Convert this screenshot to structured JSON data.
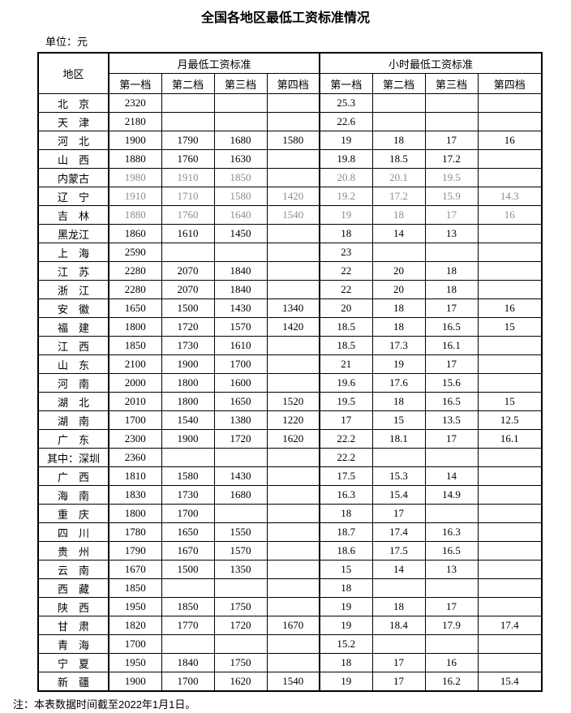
{
  "title": "全国各地区最低工资标准情况",
  "unit_label": "单位：元",
  "note": "注：本表数据时间截至2022年1月1日。",
  "colors": {
    "border": "#000000",
    "text": "#000000",
    "muted_text": "#8c8c8c",
    "background": "#ffffff"
  },
  "table": {
    "region_header": "地区",
    "group_headers": [
      "月最低工资标准",
      "小时最低工资标准"
    ],
    "tier_headers": [
      "第一档",
      "第二档",
      "第三档",
      "第四档"
    ],
    "rows": [
      {
        "region": "北　京",
        "monthly": [
          "2320",
          "",
          "",
          ""
        ],
        "hourly": [
          "25.3",
          "",
          "",
          ""
        ],
        "muted": false
      },
      {
        "region": "天　津",
        "monthly": [
          "2180",
          "",
          "",
          ""
        ],
        "hourly": [
          "22.6",
          "",
          "",
          ""
        ],
        "muted": false
      },
      {
        "region": "河　北",
        "monthly": [
          "1900",
          "1790",
          "1680",
          "1580"
        ],
        "hourly": [
          "19",
          "18",
          "17",
          "16"
        ],
        "muted": false
      },
      {
        "region": "山　西",
        "monthly": [
          "1880",
          "1760",
          "1630",
          ""
        ],
        "hourly": [
          "19.8",
          "18.5",
          "17.2",
          ""
        ],
        "muted": false
      },
      {
        "region": "内蒙古",
        "monthly": [
          "1980",
          "1910",
          "1850",
          ""
        ],
        "hourly": [
          "20.8",
          "20.1",
          "19.5",
          ""
        ],
        "muted": true
      },
      {
        "region": "辽　宁",
        "monthly": [
          "1910",
          "1710",
          "1580",
          "1420"
        ],
        "hourly": [
          "19.2",
          "17.2",
          "15.9",
          "14.3"
        ],
        "muted": true
      },
      {
        "region": "吉　林",
        "monthly": [
          "1880",
          "1760",
          "1640",
          "1540"
        ],
        "hourly": [
          "19",
          "18",
          "17",
          "16"
        ],
        "muted": true
      },
      {
        "region": "黑龙江",
        "monthly": [
          "1860",
          "1610",
          "1450",
          ""
        ],
        "hourly": [
          "18",
          "14",
          "13",
          ""
        ],
        "muted": false
      },
      {
        "region": "上　海",
        "monthly": [
          "2590",
          "",
          "",
          ""
        ],
        "hourly": [
          "23",
          "",
          "",
          ""
        ],
        "muted": false
      },
      {
        "region": "江　苏",
        "monthly": [
          "2280",
          "2070",
          "1840",
          ""
        ],
        "hourly": [
          "22",
          "20",
          "18",
          ""
        ],
        "muted": false
      },
      {
        "region": "浙　江",
        "monthly": [
          "2280",
          "2070",
          "1840",
          ""
        ],
        "hourly": [
          "22",
          "20",
          "18",
          ""
        ],
        "muted": false
      },
      {
        "region": "安　徽",
        "monthly": [
          "1650",
          "1500",
          "1430",
          "1340"
        ],
        "hourly": [
          "20",
          "18",
          "17",
          "16"
        ],
        "muted": false
      },
      {
        "region": "福　建",
        "monthly": [
          "1800",
          "1720",
          "1570",
          "1420"
        ],
        "hourly": [
          "18.5",
          "18",
          "16.5",
          "15"
        ],
        "muted": false
      },
      {
        "region": "江　西",
        "monthly": [
          "1850",
          "1730",
          "1610",
          ""
        ],
        "hourly": [
          "18.5",
          "17.3",
          "16.1",
          ""
        ],
        "muted": false
      },
      {
        "region": "山　东",
        "monthly": [
          "2100",
          "1900",
          "1700",
          ""
        ],
        "hourly": [
          "21",
          "19",
          "17",
          ""
        ],
        "muted": false
      },
      {
        "region": "河　南",
        "monthly": [
          "2000",
          "1800",
          "1600",
          ""
        ],
        "hourly": [
          "19.6",
          "17.6",
          "15.6",
          ""
        ],
        "muted": false
      },
      {
        "region": "湖　北",
        "monthly": [
          "2010",
          "1800",
          "1650",
          "1520"
        ],
        "hourly": [
          "19.5",
          "18",
          "16.5",
          "15"
        ],
        "muted": false
      },
      {
        "region": "湖　南",
        "monthly": [
          "1700",
          "1540",
          "1380",
          "1220"
        ],
        "hourly": [
          "17",
          "15",
          "13.5",
          "12.5"
        ],
        "muted": false
      },
      {
        "region": "广　东",
        "monthly": [
          "2300",
          "1900",
          "1720",
          "1620"
        ],
        "hourly": [
          "22.2",
          "18.1",
          "17",
          "16.1"
        ],
        "muted": false
      },
      {
        "region": "其中：深圳",
        "monthly": [
          "2360",
          "",
          "",
          ""
        ],
        "hourly": [
          "22.2",
          "",
          "",
          ""
        ],
        "muted": false
      },
      {
        "region": "广　西",
        "monthly": [
          "1810",
          "1580",
          "1430",
          ""
        ],
        "hourly": [
          "17.5",
          "15.3",
          "14",
          ""
        ],
        "muted": false
      },
      {
        "region": "海　南",
        "monthly": [
          "1830",
          "1730",
          "1680",
          ""
        ],
        "hourly": [
          "16.3",
          "15.4",
          "14.9",
          ""
        ],
        "muted": false
      },
      {
        "region": "重　庆",
        "monthly": [
          "1800",
          "1700",
          "",
          ""
        ],
        "hourly": [
          "18",
          "17",
          "",
          ""
        ],
        "muted": false
      },
      {
        "region": "四　川",
        "monthly": [
          "1780",
          "1650",
          "1550",
          ""
        ],
        "hourly": [
          "18.7",
          "17.4",
          "16.3",
          ""
        ],
        "muted": false
      },
      {
        "region": "贵　州",
        "monthly": [
          "1790",
          "1670",
          "1570",
          ""
        ],
        "hourly": [
          "18.6",
          "17.5",
          "16.5",
          ""
        ],
        "muted": false
      },
      {
        "region": "云　南",
        "monthly": [
          "1670",
          "1500",
          "1350",
          ""
        ],
        "hourly": [
          "15",
          "14",
          "13",
          ""
        ],
        "muted": false
      },
      {
        "region": "西　藏",
        "monthly": [
          "1850",
          "",
          "",
          ""
        ],
        "hourly": [
          "18",
          "",
          "",
          ""
        ],
        "muted": false
      },
      {
        "region": "陕　西",
        "monthly": [
          "1950",
          "1850",
          "1750",
          ""
        ],
        "hourly": [
          "19",
          "18",
          "17",
          ""
        ],
        "muted": false
      },
      {
        "region": "甘　肃",
        "monthly": [
          "1820",
          "1770",
          "1720",
          "1670"
        ],
        "hourly": [
          "19",
          "18.4",
          "17.9",
          "17.4"
        ],
        "muted": false
      },
      {
        "region": "青　海",
        "monthly": [
          "1700",
          "",
          "",
          ""
        ],
        "hourly": [
          "15.2",
          "",
          "",
          ""
        ],
        "muted": false
      },
      {
        "region": "宁　夏",
        "monthly": [
          "1950",
          "1840",
          "1750",
          ""
        ],
        "hourly": [
          "18",
          "17",
          "16",
          ""
        ],
        "muted": false
      },
      {
        "region": "新　疆",
        "monthly": [
          "1900",
          "1700",
          "1620",
          "1540"
        ],
        "hourly": [
          "19",
          "17",
          "16.2",
          "15.4"
        ],
        "muted": false
      }
    ]
  }
}
